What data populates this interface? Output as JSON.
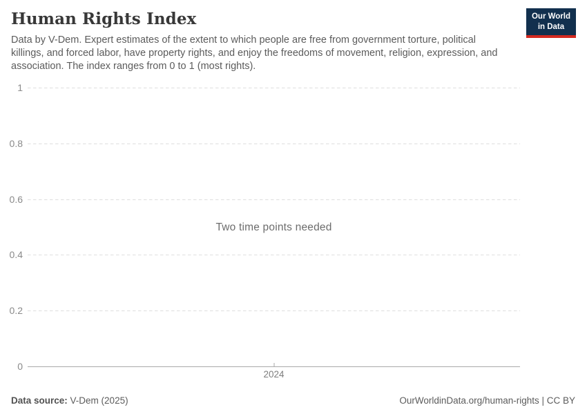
{
  "header": {
    "title": "Human Rights Index",
    "subtitle": "Data by V-Dem. Expert estimates of the extent to which people are free from government torture, political killings, and forced labor, have property rights, and enjoy the freedoms of movement, religion, expression, and association. The index ranges from 0 to 1 (most rights)."
  },
  "logo": {
    "line1": "Our World",
    "line2": "in Data",
    "bg_color": "#12304e",
    "accent_color": "#d42a20"
  },
  "chart_data": {
    "type": "line",
    "title": "Human Rights Index",
    "series": [],
    "message": "Two time points needed",
    "ylim": [
      0,
      1
    ],
    "yticks": [
      0,
      0.2,
      0.4,
      0.6,
      0.8,
      1
    ],
    "ytick_labels": [
      "0",
      "0.2",
      "0.4",
      "0.6",
      "0.8",
      "1"
    ],
    "xtick_labels": [
      "2024"
    ],
    "xtick_positions_pct": [
      50
    ],
    "grid": true,
    "xlabel": "",
    "ylabel": ""
  },
  "footer": {
    "source_label": "Data source:",
    "source_value": "V-Dem (2025)",
    "attribution": "OurWorldinData.org/human-rights | CC BY"
  },
  "colors": {
    "title_text": "#383838",
    "subtitle_text": "#5b5b5b",
    "axis_label_text": "#8a8a8a",
    "gridline": "#dedede",
    "axis_line": "#a8a8a8",
    "message_text": "#6c6c6c"
  }
}
